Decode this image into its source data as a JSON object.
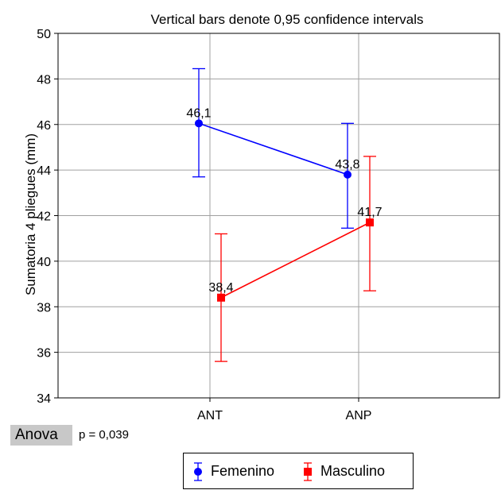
{
  "chart_data": {
    "type": "line",
    "title": "Vertical bars denote 0,95 confidence intervals",
    "xlabel": "",
    "ylabel": "Sumatoria 4 pliegues (mm)",
    "categories": [
      "ANT",
      "ANP"
    ],
    "ylim": [
      34,
      50
    ],
    "yticks": [
      34,
      36,
      38,
      40,
      42,
      44,
      46,
      48,
      50
    ],
    "grid": true,
    "series": [
      {
        "name": "Femenino",
        "color": "#0000ff",
        "marker": "circle",
        "values": [
          46.05,
          43.8
        ],
        "labels": [
          "46,1",
          "43,8"
        ],
        "ci_low": [
          43.7,
          41.45
        ],
        "ci_high": [
          48.45,
          46.05
        ]
      },
      {
        "name": "Masculino",
        "color": "#ff0000",
        "marker": "square",
        "values": [
          38.4,
          41.7
        ],
        "labels": [
          "38,4",
          "41,7"
        ],
        "ci_low": [
          35.6,
          38.7
        ],
        "ci_high": [
          41.2,
          44.6
        ]
      }
    ]
  },
  "anova": {
    "label": "Anova",
    "pvalue": "p = 0,039"
  }
}
